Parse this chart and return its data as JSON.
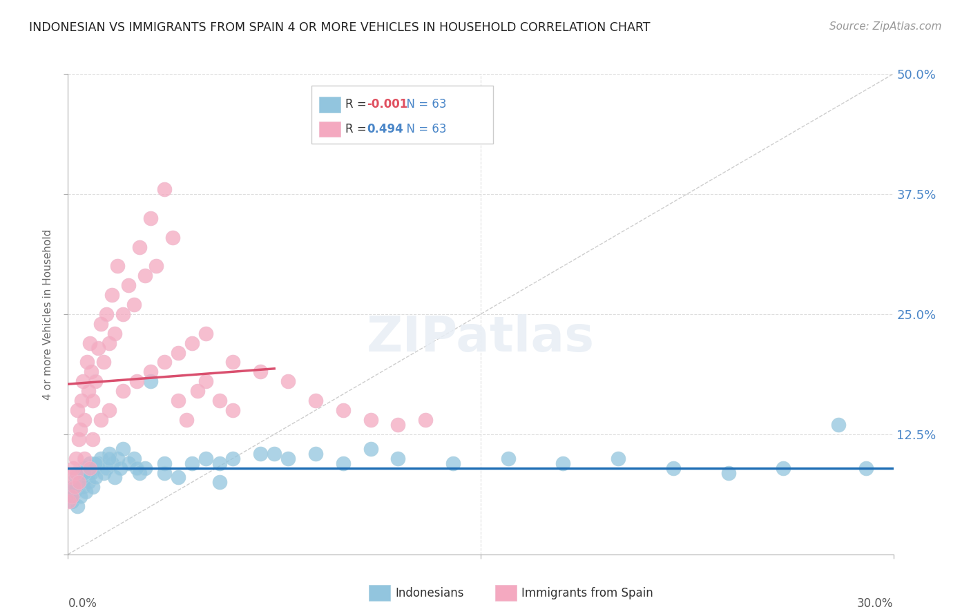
{
  "title": "INDONESIAN VS IMMIGRANTS FROM SPAIN 4 OR MORE VEHICLES IN HOUSEHOLD CORRELATION CHART",
  "source": "Source: ZipAtlas.com",
  "ylabel_label": "4 or more Vehicles in Household",
  "legend_label1": "Indonesians",
  "legend_label2": "Immigrants from Spain",
  "R1": "-0.001",
  "R2": "0.494",
  "N1": 63,
  "N2": 63,
  "xlim": [
    0.0,
    30.0
  ],
  "ylim": [
    0.0,
    50.0
  ],
  "blue_color": "#92c5de",
  "pink_color": "#f4a9c0",
  "blue_line_color": "#1f6eb5",
  "pink_line_color": "#d94f6e",
  "diag_color": "#cccccc",
  "background_color": "#ffffff",
  "grid_color": "#dddddd",
  "ytick_positions": [
    0,
    12.5,
    25.0,
    37.5,
    50.0
  ],
  "ytick_labels": [
    "",
    "12.5%",
    "25.0%",
    "37.5%",
    "50.0%"
  ],
  "watermark": "ZIPatlas",
  "ind_x": [
    0.1,
    0.15,
    0.2,
    0.25,
    0.3,
    0.35,
    0.4,
    0.45,
    0.5,
    0.55,
    0.6,
    0.65,
    0.7,
    0.75,
    0.8,
    0.85,
    0.9,
    0.95,
    1.0,
    1.1,
    1.2,
    1.3,
    1.4,
    1.5,
    1.6,
    1.7,
    1.8,
    1.9,
    2.0,
    2.2,
    2.4,
    2.6,
    2.8,
    3.0,
    3.5,
    4.0,
    4.5,
    5.0,
    5.5,
    6.0,
    7.0,
    8.0,
    9.0,
    10.0,
    11.0,
    12.0,
    14.0,
    16.0,
    18.0,
    20.0,
    22.0,
    24.0,
    26.0,
    28.0,
    29.0,
    0.3,
    0.6,
    1.0,
    1.5,
    2.5,
    3.5,
    5.5,
    7.5
  ],
  "ind_y": [
    6.0,
    5.5,
    7.0,
    6.5,
    8.0,
    5.0,
    7.5,
    6.0,
    8.5,
    7.0,
    9.0,
    6.5,
    8.0,
    7.5,
    9.5,
    8.5,
    7.0,
    9.0,
    8.0,
    9.5,
    10.0,
    8.5,
    9.0,
    10.5,
    9.5,
    8.0,
    10.0,
    9.0,
    11.0,
    9.5,
    10.0,
    8.5,
    9.0,
    18.0,
    9.5,
    8.0,
    9.5,
    10.0,
    9.5,
    10.0,
    10.5,
    10.0,
    10.5,
    9.5,
    11.0,
    10.0,
    9.5,
    10.0,
    9.5,
    10.0,
    9.0,
    8.5,
    9.0,
    13.5,
    9.0,
    7.0,
    8.5,
    9.5,
    10.0,
    9.0,
    8.5,
    7.5,
    10.5
  ],
  "spain_x": [
    0.05,
    0.1,
    0.15,
    0.2,
    0.25,
    0.3,
    0.35,
    0.4,
    0.45,
    0.5,
    0.55,
    0.6,
    0.7,
    0.75,
    0.8,
    0.85,
    0.9,
    1.0,
    1.1,
    1.2,
    1.3,
    1.4,
    1.5,
    1.6,
    1.7,
    1.8,
    2.0,
    2.2,
    2.4,
    2.6,
    2.8,
    3.0,
    3.2,
    3.5,
    3.8,
    4.0,
    4.3,
    4.7,
    5.0,
    5.5,
    6.0,
    0.3,
    0.6,
    0.9,
    1.2,
    1.5,
    2.0,
    2.5,
    3.0,
    3.5,
    4.0,
    4.5,
    5.0,
    6.0,
    7.0,
    8.0,
    9.0,
    10.0,
    11.0,
    12.0,
    13.0,
    0.4,
    0.8
  ],
  "spain_y": [
    5.5,
    8.0,
    6.0,
    9.0,
    7.0,
    10.0,
    15.0,
    12.0,
    13.0,
    16.0,
    18.0,
    14.0,
    20.0,
    17.0,
    22.0,
    19.0,
    16.0,
    18.0,
    21.5,
    24.0,
    20.0,
    25.0,
    22.0,
    27.0,
    23.0,
    30.0,
    25.0,
    28.0,
    26.0,
    32.0,
    29.0,
    35.0,
    30.0,
    38.0,
    33.0,
    16.0,
    14.0,
    17.0,
    18.0,
    16.0,
    15.0,
    8.5,
    10.0,
    12.0,
    14.0,
    15.0,
    17.0,
    18.0,
    19.0,
    20.0,
    21.0,
    22.0,
    23.0,
    20.0,
    19.0,
    18.0,
    16.0,
    15.0,
    14.0,
    13.5,
    14.0,
    7.5,
    9.0
  ]
}
